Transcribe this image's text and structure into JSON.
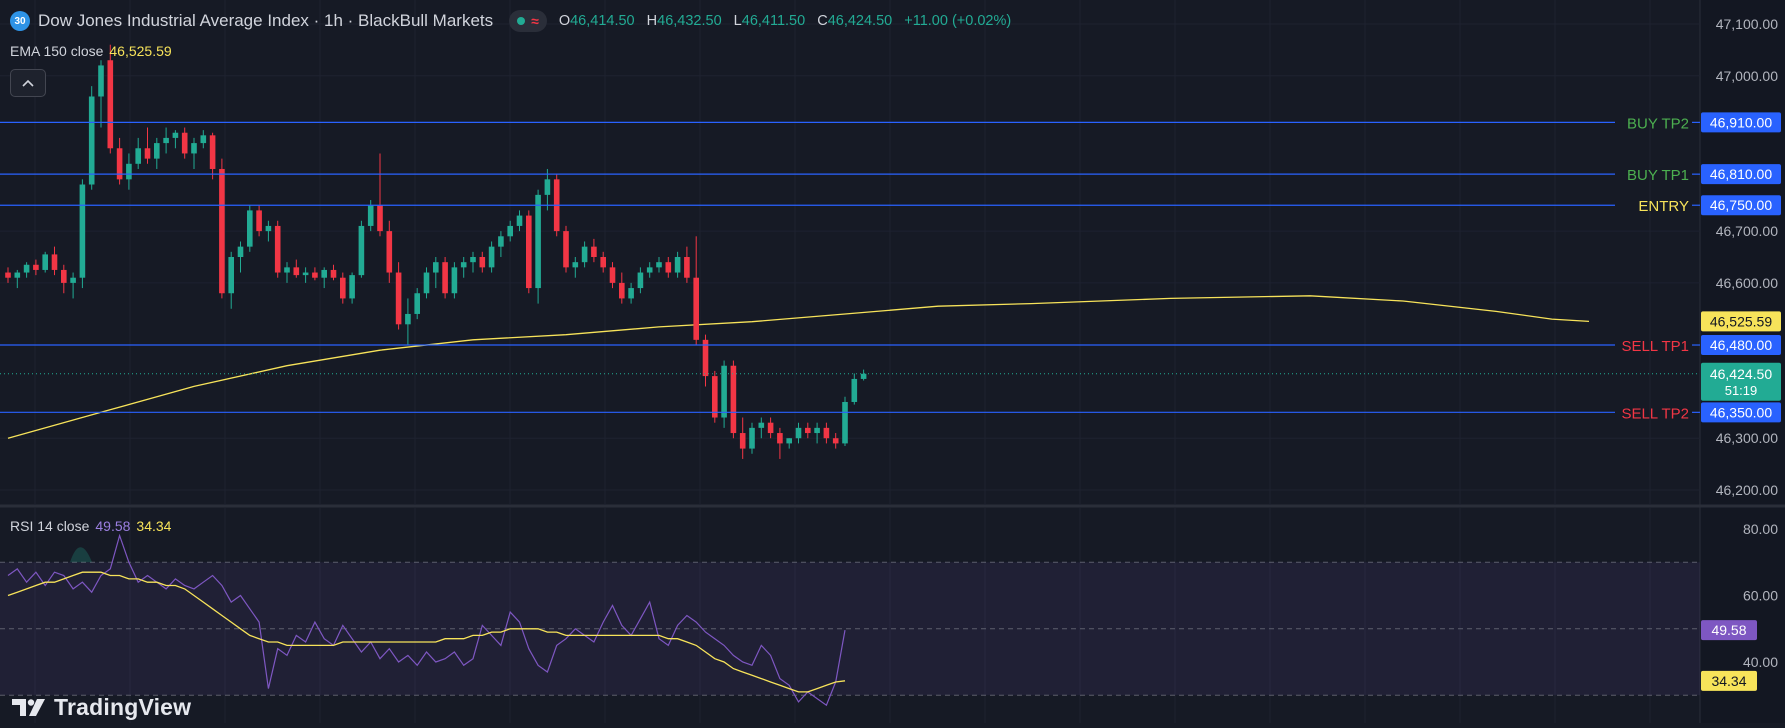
{
  "header": {
    "symbol_badge": "30",
    "title": "Dow Jones Industrial Average Index · 1h · BlackBull Markets",
    "status_icons": [
      "market-open-dot-icon",
      "wave-icon"
    ],
    "ohlc": {
      "o_label": "O",
      "o_value": "46,414.50",
      "h_label": "H",
      "h_value": "46,432.50",
      "l_label": "L",
      "l_value": "46,411.50",
      "c_label": "C",
      "c_value": "46,424.50",
      "change": "+11.00 (+0.02%)"
    }
  },
  "ema_legend": {
    "label": "EMA 150 close",
    "value": "46,525.59"
  },
  "rsi_legend": {
    "label": "RSI 14 close",
    "rsi_value": "49.58",
    "ma_value": "34.34"
  },
  "branding": {
    "logo_text": "TradingView"
  },
  "colors": {
    "background": "#161a25",
    "bull": "#22ab94",
    "bear": "#f23645",
    "ema": "#f7e35a",
    "rsi": "#7e57c2",
    "level_line": "#2962ff",
    "buy_label": "#4caf50",
    "sell_label": "#f23645",
    "entry_label": "#f7e35a"
  },
  "chart_data": [
    {
      "type": "candlestick",
      "title": "Dow Jones Industrial Average Index · 1h · BlackBull Markets",
      "y_axis_ticks": [
        "47,100.00",
        "47,000.00",
        "46,700.00",
        "46,600.00",
        "46,300.00",
        "46,200.00"
      ],
      "ylim": [
        46180,
        47120
      ],
      "grid": true,
      "levels": [
        {
          "label": "BUY TP2",
          "price": 46910,
          "price_text": "46,910.00",
          "label_color": "#4caf50"
        },
        {
          "label": "BUY TP1",
          "price": 46810,
          "price_text": "46,810.00",
          "label_color": "#4caf50"
        },
        {
          "label": "ENTRY",
          "price": 46750,
          "price_text": "46,750.00",
          "label_color": "#f7e35a"
        },
        {
          "label": "SELL TP1",
          "price": 46480,
          "price_text": "46,480.00",
          "label_color": "#f23645"
        },
        {
          "label": "SELL TP2",
          "price": 46350,
          "price_text": "46,350.00",
          "label_color": "#f23645"
        }
      ],
      "ema_tag": {
        "price": 46525.59,
        "text": "46,525.59"
      },
      "last_price_tag": {
        "price": 46424.5,
        "text": "46,424.50",
        "countdown": "51:19"
      },
      "candles_ohlc": [
        [
          46620,
          46630,
          46600,
          46610
        ],
        [
          46610,
          46625,
          46590,
          46620
        ],
        [
          46620,
          46640,
          46610,
          46635
        ],
        [
          46635,
          46645,
          46615,
          46625
        ],
        [
          46625,
          46660,
          46620,
          46655
        ],
        [
          46655,
          46670,
          46615,
          46625
        ],
        [
          46625,
          46635,
          46580,
          46600
        ],
        [
          46600,
          46620,
          46570,
          46610
        ],
        [
          46610,
          46800,
          46590,
          46790
        ],
        [
          46790,
          46980,
          46780,
          46960
        ],
        [
          46960,
          47030,
          46900,
          47020
        ],
        [
          47030,
          47060,
          46850,
          46860
        ],
        [
          46860,
          46880,
          46790,
          46800
        ],
        [
          46800,
          46850,
          46780,
          46830
        ],
        [
          46830,
          46880,
          46820,
          46860
        ],
        [
          46860,
          46900,
          46830,
          46840
        ],
        [
          46840,
          46880,
          46820,
          46870
        ],
        [
          46870,
          46900,
          46850,
          46880
        ],
        [
          46880,
          46895,
          46860,
          46890
        ],
        [
          46890,
          46900,
          46840,
          46850
        ],
        [
          46850,
          46880,
          46820,
          46870
        ],
        [
          46870,
          46895,
          46860,
          46885
        ],
        [
          46885,
          46890,
          46800,
          46820
        ],
        [
          46820,
          46840,
          46570,
          46580
        ],
        [
          46580,
          46660,
          46550,
          46650
        ],
        [
          46650,
          46680,
          46620,
          46670
        ],
        [
          46670,
          46750,
          46660,
          46740
        ],
        [
          46740,
          46750,
          46690,
          46700
        ],
        [
          46700,
          46720,
          46680,
          46710
        ],
        [
          46710,
          46720,
          46610,
          46620
        ],
        [
          46620,
          46640,
          46600,
          46630
        ],
        [
          46630,
          46645,
          46610,
          46615
        ],
        [
          46615,
          46630,
          46600,
          46620
        ],
        [
          46620,
          46630,
          46605,
          46610
        ],
        [
          46610,
          46630,
          46590,
          46625
        ],
        [
          46625,
          46635,
          46605,
          46610
        ],
        [
          46610,
          46620,
          46560,
          46570
        ],
        [
          46570,
          46620,
          46560,
          46615
        ],
        [
          46615,
          46720,
          46610,
          46710
        ],
        [
          46710,
          46760,
          46700,
          46750
        ],
        [
          46750,
          46850,
          46690,
          46700
        ],
        [
          46700,
          46720,
          46600,
          46620
        ],
        [
          46620,
          46640,
          46510,
          46520
        ],
        [
          46520,
          46570,
          46480,
          46540
        ],
        [
          46540,
          46590,
          46530,
          46580
        ],
        [
          46580,
          46630,
          46570,
          46620
        ],
        [
          46620,
          46650,
          46590,
          46640
        ],
        [
          46640,
          46650,
          46570,
          46580
        ],
        [
          46580,
          46640,
          46570,
          46630
        ],
        [
          46630,
          46650,
          46610,
          46640
        ],
        [
          46640,
          46660,
          46620,
          46650
        ],
        [
          46650,
          46660,
          46620,
          46630
        ],
        [
          46630,
          46680,
          46620,
          46670
        ],
        [
          46670,
          46700,
          46650,
          46690
        ],
        [
          46690,
          46720,
          46680,
          46710
        ],
        [
          46710,
          46740,
          46700,
          46730
        ],
        [
          46730,
          46740,
          46580,
          46590
        ],
        [
          46590,
          46780,
          46560,
          46770
        ],
        [
          46770,
          46820,
          46740,
          46800
        ],
        [
          46800,
          46810,
          46690,
          46700
        ],
        [
          46700,
          46710,
          46620,
          46630
        ],
        [
          46630,
          46650,
          46610,
          46640
        ],
        [
          46640,
          46680,
          46630,
          46670
        ],
        [
          46670,
          46685,
          46640,
          46650
        ],
        [
          46650,
          46660,
          46620,
          46630
        ],
        [
          46630,
          46640,
          46590,
          46600
        ],
        [
          46600,
          46620,
          46560,
          46570
        ],
        [
          46570,
          46600,
          46560,
          46590
        ],
        [
          46590,
          46630,
          46580,
          46620
        ],
        [
          46620,
          46640,
          46610,
          46630
        ],
        [
          46630,
          46650,
          46620,
          46640
        ],
        [
          46640,
          46650,
          46610,
          46620
        ],
        [
          46620,
          46660,
          46610,
          46650
        ],
        [
          46650,
          46670,
          46600,
          46610
        ],
        [
          46610,
          46690,
          46480,
          46490
        ],
        [
          46490,
          46500,
          46400,
          46420
        ],
        [
          46420,
          46430,
          46330,
          46340
        ],
        [
          46340,
          46450,
          46320,
          46440
        ],
        [
          46440,
          46450,
          46300,
          46310
        ],
        [
          46310,
          46340,
          46260,
          46280
        ],
        [
          46280,
          46330,
          46270,
          46320
        ],
        [
          46320,
          46340,
          46300,
          46330
        ],
        [
          46330,
          46340,
          46300,
          46310
        ],
        [
          46310,
          46320,
          46260,
          46290
        ],
        [
          46290,
          46300,
          46280,
          46300
        ],
        [
          46300,
          46330,
          46290,
          46320
        ],
        [
          46320,
          46330,
          46300,
          46310
        ],
        [
          46310,
          46330,
          46290,
          46320
        ],
        [
          46320,
          46330,
          46290,
          46300
        ],
        [
          46300,
          46310,
          46280,
          46290
        ],
        [
          46290,
          46380,
          46285,
          46370
        ],
        [
          46370,
          46425,
          46365,
          46414.5
        ],
        [
          46414.5,
          46432.5,
          46411.5,
          46424.5
        ]
      ],
      "ema": [
        [
          0,
          46300
        ],
        [
          10,
          46350
        ],
        [
          20,
          46400
        ],
        [
          30,
          46440
        ],
        [
          40,
          46470
        ],
        [
          50,
          46490
        ],
        [
          60,
          46500
        ],
        [
          70,
          46515
        ],
        [
          80,
          46525
        ],
        [
          90,
          46540
        ],
        [
          100,
          46555
        ],
        [
          110,
          46560
        ],
        [
          125,
          46570
        ],
        [
          140,
          46575
        ],
        [
          150,
          46565
        ],
        [
          160,
          46545
        ],
        [
          166,
          46530
        ],
        [
          170,
          46525.59
        ]
      ]
    },
    {
      "type": "line",
      "title": "RSI 14 close",
      "y_axis_ticks": [
        "80.00",
        "60.00",
        "40.00"
      ],
      "ylim": [
        20,
        85
      ],
      "bands": [
        70,
        30
      ],
      "grid": true,
      "series": [
        {
          "name": "RSI 14 close",
          "color": "#7e57c2",
          "values": [
            66,
            68,
            64,
            67,
            63,
            67,
            66,
            62,
            64,
            61,
            66,
            68,
            78,
            70,
            64,
            66,
            64,
            62,
            65,
            63,
            62,
            64,
            66,
            63,
            58,
            60,
            56,
            52,
            32,
            44,
            42,
            48,
            46,
            52,
            47,
            45,
            51,
            47,
            43,
            46,
            41,
            44,
            40,
            42,
            39,
            43,
            40,
            41,
            43,
            39,
            41,
            51,
            48,
            45,
            55,
            52,
            44,
            39,
            37,
            45,
            47,
            50,
            48,
            46,
            52,
            57,
            51,
            48,
            53,
            58,
            47,
            45,
            51,
            54,
            52,
            49,
            47,
            45,
            42,
            40,
            39,
            45,
            42,
            35,
            33,
            28,
            31,
            29,
            27,
            34,
            49.58
          ]
        },
        {
          "name": "RSI MA",
          "color": "#f7e35a",
          "values": [
            60,
            61,
            62,
            63,
            64,
            64,
            65,
            66,
            67,
            67,
            67,
            66,
            66,
            65,
            65,
            64,
            64,
            63,
            63,
            62,
            60,
            58,
            56,
            54,
            52,
            50,
            48,
            47,
            46,
            46,
            45,
            45,
            45,
            45,
            45,
            45,
            46,
            46,
            46,
            46,
            46,
            46,
            46,
            46,
            46,
            46,
            46,
            47,
            47,
            47,
            48,
            48,
            49,
            49,
            50,
            50,
            50,
            50,
            49,
            49,
            48,
            48,
            48,
            48,
            48,
            48,
            48,
            48,
            48,
            48,
            48,
            47,
            47,
            46,
            45,
            43,
            41,
            40,
            38,
            37,
            36,
            35,
            34,
            33,
            32,
            31,
            31,
            32,
            33,
            34,
            34.34
          ]
        }
      ]
    }
  ]
}
